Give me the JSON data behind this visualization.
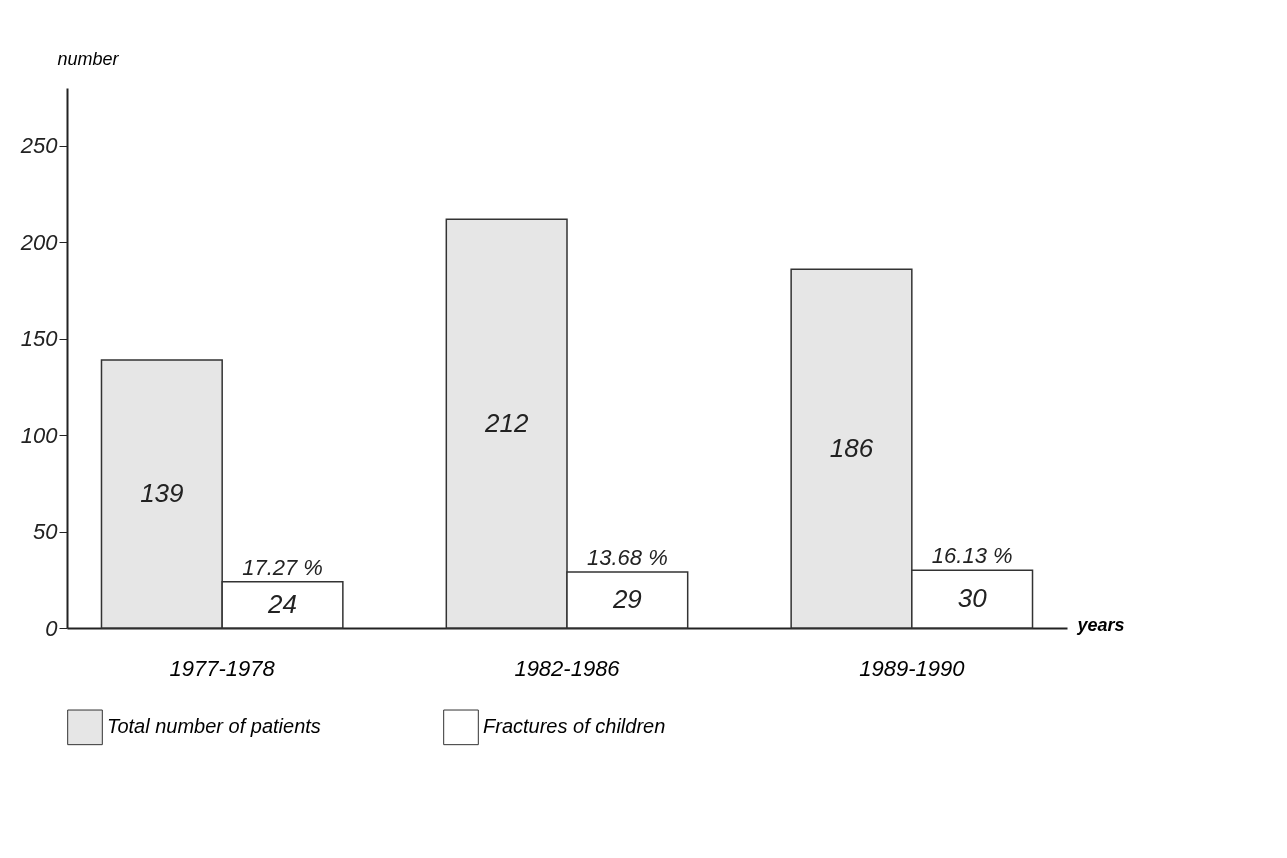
{
  "chart_data": {
    "type": "bar",
    "xlabel": "years",
    "ylabel": "number",
    "categories": [
      "1977-1978",
      "1982-1986",
      "1989-1990"
    ],
    "series": [
      {
        "name": "Total number of patients",
        "color": "#e6e6e6",
        "values": [
          139,
          212,
          186
        ]
      },
      {
        "name": "Fractures of children",
        "color": "#ffffff",
        "values": [
          24,
          29,
          30
        ]
      }
    ],
    "ylim": [
      0,
      280
    ],
    "yticks": [
      0,
      50,
      100,
      150,
      200,
      250
    ],
    "grid": false,
    "legend": "bottom",
    "data_labels": true,
    "annotations": [
      {
        "text": "17.27 %",
        "x": "1977-1978",
        "y": 24
      },
      {
        "text": "13.68 %",
        "x": "1982-1986",
        "y": 29
      },
      {
        "text": "16.13 %",
        "x": "1989-1990",
        "y": 30
      }
    ]
  }
}
